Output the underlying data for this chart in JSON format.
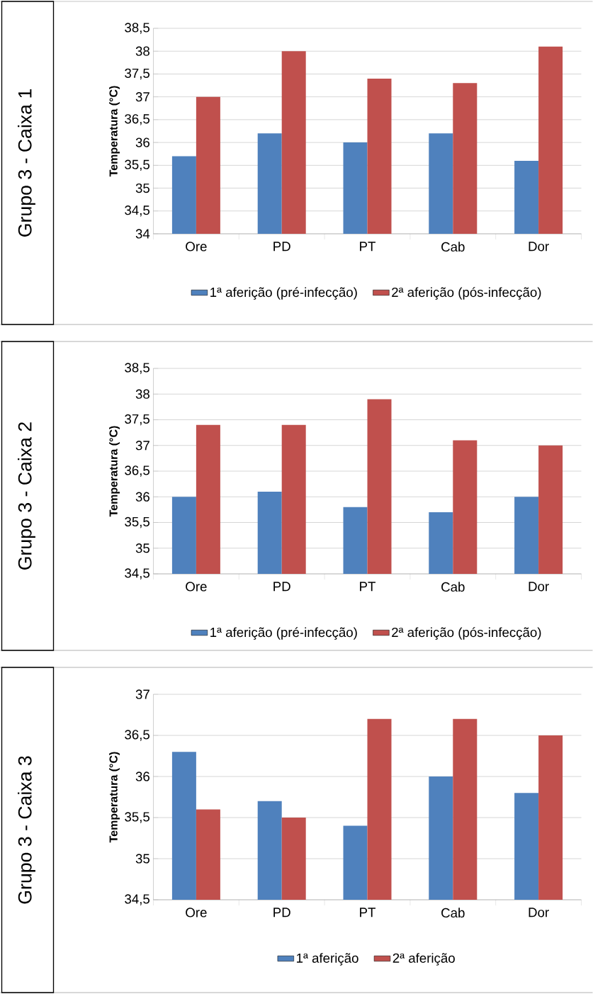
{
  "chart_data": [
    {
      "type": "bar",
      "title": "Grupo 3 - Caixa 1",
      "ylabel": "Temperatura (°C)",
      "categories": [
        "Ore",
        "PD",
        "PT",
        "Cab",
        "Dor"
      ],
      "series": [
        {
          "name": "1ª aferição (pré-infecção)",
          "color": "#4f81bd",
          "values": [
            35.7,
            36.2,
            36.0,
            36.2,
            35.6
          ]
        },
        {
          "name": "2ª aferição  (pós-infecção)",
          "color": "#c0504d",
          "values": [
            37.0,
            38.0,
            37.4,
            37.3,
            38.1
          ]
        }
      ],
      "ylim": [
        34,
        38.5
      ],
      "yticks": [
        34,
        {
          "value": 34.5,
          "label": "34,5"
        },
        35,
        {
          "value": 35.5,
          "label": "35,5"
        },
        36,
        {
          "value": 36.5,
          "label": "36,5"
        },
        37,
        {
          "value": 37.5,
          "label": "37,5"
        },
        38,
        {
          "value": 38.5,
          "label": "38,5"
        }
      ],
      "grid": "y",
      "legend": "bottom"
    },
    {
      "type": "bar",
      "title": "Grupo 3 - Caixa 2",
      "ylabel": "Temperatura (°C)",
      "categories": [
        "Ore",
        "PD",
        "PT",
        "Cab",
        "Dor"
      ],
      "series": [
        {
          "name": "1ª aferição (pré-infecção)",
          "color": "#4f81bd",
          "values": [
            36.0,
            36.1,
            35.8,
            35.7,
            36.0
          ]
        },
        {
          "name": "2ª aferição  (pós-infecção)",
          "color": "#c0504d",
          "values": [
            37.4,
            37.4,
            37.9,
            37.1,
            37.0
          ]
        }
      ],
      "ylim": [
        34.5,
        38.5
      ],
      "yticks": [
        {
          "value": 34.5,
          "label": "34,5"
        },
        35,
        {
          "value": 35.5,
          "label": "35,5"
        },
        36,
        {
          "value": 36.5,
          "label": "36,5"
        },
        37,
        {
          "value": 37.5,
          "label": "37,5"
        },
        38,
        {
          "value": 38.5,
          "label": "38,5"
        }
      ],
      "grid": "y",
      "legend": "bottom"
    },
    {
      "type": "bar",
      "title": "Grupo 3 - Caixa 3",
      "ylabel": "Temperatura (°C)",
      "categories": [
        "Ore",
        "PD",
        "PT",
        "Cab",
        "Dor"
      ],
      "series": [
        {
          "name": "1ª aferição",
          "color": "#4f81bd",
          "values": [
            36.3,
            35.7,
            35.4,
            36.0,
            35.8
          ]
        },
        {
          "name": "2ª aferição",
          "color": "#c0504d",
          "values": [
            35.6,
            35.5,
            36.7,
            36.7,
            36.5
          ]
        }
      ],
      "ylim": [
        34.5,
        37
      ],
      "yticks": [
        {
          "value": 34.5,
          "label": "34,5"
        },
        35,
        {
          "value": 35.5,
          "label": "35,5"
        },
        36,
        {
          "value": 36.5,
          "label": "36,5"
        },
        37
      ],
      "grid": "y",
      "legend": "bottom"
    }
  ]
}
